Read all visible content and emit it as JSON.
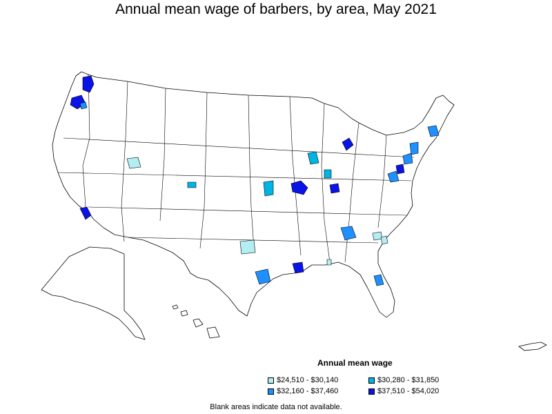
{
  "title": "Annual mean wage of barbers, by area, May 2021",
  "legend": {
    "title": "Annual mean wage",
    "items": [
      {
        "label": "$24,510 - $30,140",
        "color": "#b3eef2"
      },
      {
        "label": "$30,280 - $31,850",
        "color": "#00b4e6"
      },
      {
        "label": "$32,160 - $37,460",
        "color": "#1e90ff"
      },
      {
        "label": "$37,510 - $54,020",
        "color": "#0a14e6"
      }
    ]
  },
  "footnote": "Blank areas indicate data not available.",
  "colors": {
    "border": "#000000",
    "background": "#ffffff",
    "bin1": "#b3eef2",
    "bin2": "#00b4e6",
    "bin3": "#1e90ff",
    "bin4": "#0a14e6"
  }
}
